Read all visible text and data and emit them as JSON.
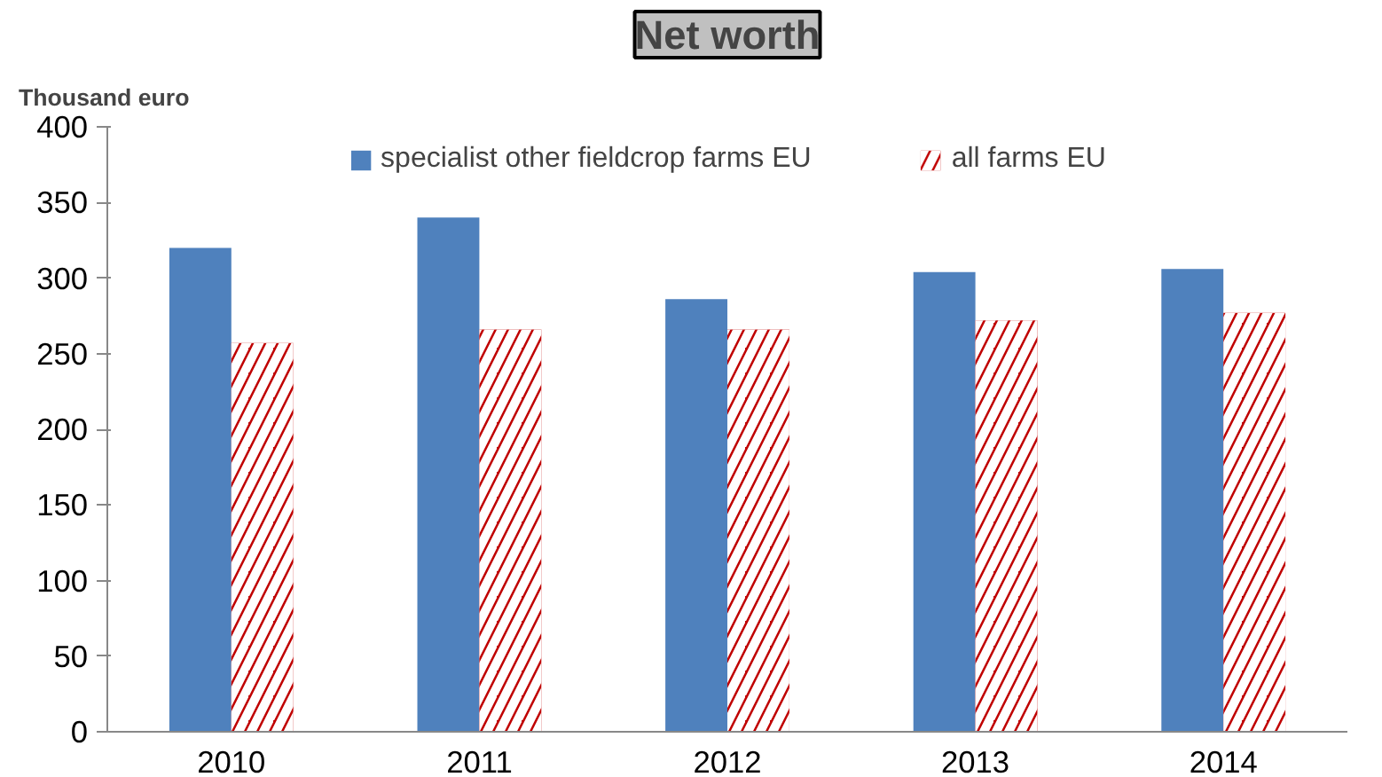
{
  "chart_data": {
    "type": "bar",
    "title": "Net worth",
    "ylabel": "Thousand euro",
    "categories": [
      "2010",
      "2011",
      "2012",
      "2013",
      "2014"
    ],
    "series": [
      {
        "name": "specialist other fieldcrop farms EU",
        "color": "#4f81bd",
        "values": [
          320,
          340,
          286,
          304,
          306
        ]
      },
      {
        "name": "all farms EU",
        "color": "#c00000",
        "values": [
          257,
          266,
          266,
          272,
          277
        ]
      }
    ],
    "ylim": [
      0,
      400
    ],
    "yticks": [
      0,
      50,
      100,
      150,
      200,
      250,
      300,
      350,
      400
    ],
    "grid": false,
    "legend": "top"
  }
}
